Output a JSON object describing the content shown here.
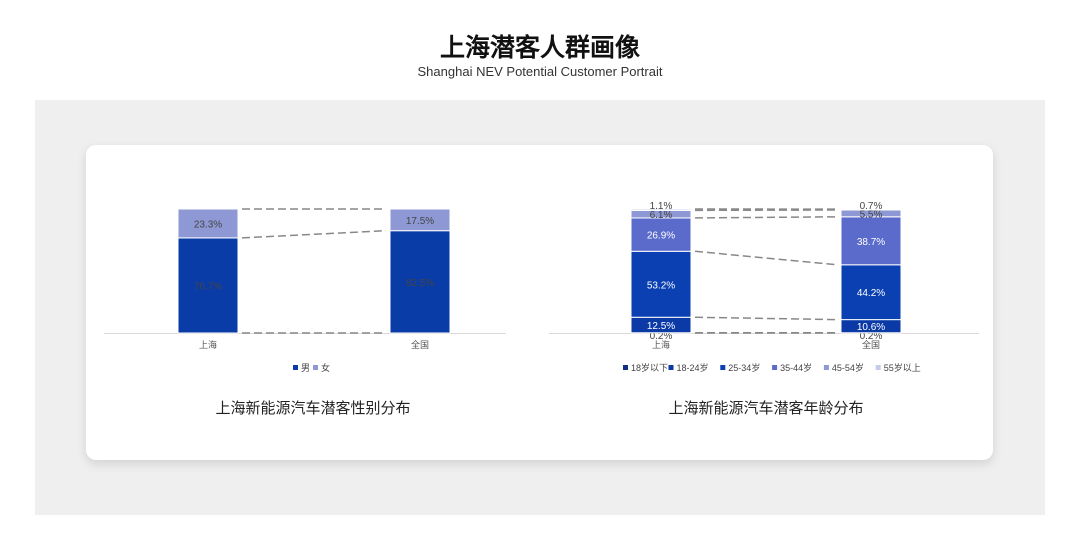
{
  "header": {
    "title": "上海潜客人群画像",
    "subtitle": "Shanghai NEV Potential Customer Portrait"
  },
  "chart_data": [
    {
      "type": "bar",
      "stacked": true,
      "title": "上海新能源汽车潜客性别分布",
      "categories": [
        "上海",
        "全国"
      ],
      "series": [
        {
          "name": "男",
          "values": [
            76.7,
            82.5
          ],
          "color": "#0a3ca8"
        },
        {
          "name": "女",
          "values": [
            23.3,
            17.5
          ],
          "color": "#8e98d4"
        }
      ],
      "ylim": [
        0,
        100
      ],
      "unit": "%",
      "legend": "bottom",
      "connector_lines": "dashed"
    },
    {
      "type": "bar",
      "stacked": true,
      "title": "上海新能源汽车潜客年龄分布",
      "categories": [
        "上海",
        "全国"
      ],
      "series": [
        {
          "name": "18岁以下",
          "values": [
            0.2,
            0.2
          ],
          "color": "#142f86"
        },
        {
          "name": "18-24岁",
          "values": [
            12.5,
            10.6
          ],
          "color": "#0b3aa6"
        },
        {
          "name": "25-34岁",
          "values": [
            53.2,
            44.2
          ],
          "color": "#0a40b2"
        },
        {
          "name": "35-44岁",
          "values": [
            26.9,
            38.7
          ],
          "color": "#5a6bcb"
        },
        {
          "name": "45-54岁",
          "values": [
            6.1,
            5.5
          ],
          "color": "#8e98d4"
        },
        {
          "name": "55岁以上",
          "values": [
            1.1,
            0.7
          ],
          "color": "#c6cbea"
        }
      ],
      "ylim": [
        0,
        100
      ],
      "unit": "%",
      "legend": "bottom",
      "connector_lines": "dashed"
    }
  ]
}
